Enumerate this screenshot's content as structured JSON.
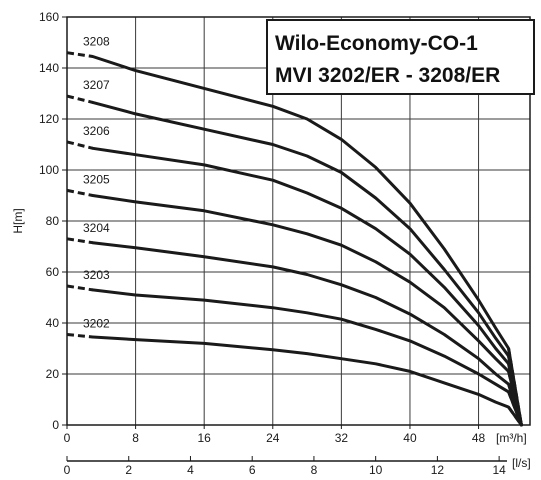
{
  "chart_data": {
    "type": "line",
    "title": [
      "Wilo-Economy-CO-1",
      "MVI 3202/ER - 3208/ER"
    ],
    "ylabel": "H[m]",
    "xlabel": "[m³/h]",
    "x2label": "[l/s]",
    "xlim": [
      0,
      54
    ],
    "ylim": [
      0,
      160
    ],
    "x2lim": [
      0,
      15
    ],
    "xticks": [
      0,
      8,
      16,
      24,
      32,
      40,
      48
    ],
    "yticks": [
      0,
      20,
      40,
      60,
      80,
      100,
      120,
      140,
      160
    ],
    "x2ticks": [
      0,
      2,
      4,
      6,
      8,
      10,
      12,
      14
    ],
    "grid": true,
    "series": [
      {
        "name": "3208",
        "x": [
          0,
          3,
          8,
          16,
          24,
          28,
          32,
          36,
          40,
          44,
          48,
          50,
          51.5,
          53
        ],
        "y": [
          146,
          144.5,
          139,
          132,
          125,
          120,
          112,
          101,
          87,
          69,
          49,
          38,
          30,
          0
        ]
      },
      {
        "name": "3207",
        "x": [
          0,
          3,
          8,
          16,
          24,
          28,
          32,
          36,
          40,
          44,
          48,
          50,
          51.5,
          53
        ],
        "y": [
          129,
          126.5,
          122,
          116,
          110,
          105.5,
          99,
          89,
          77,
          61,
          44,
          34,
          27,
          0
        ]
      },
      {
        "name": "3206",
        "x": [
          0,
          3,
          8,
          16,
          24,
          28,
          32,
          36,
          40,
          44,
          48,
          50,
          51.5,
          53
        ],
        "y": [
          111,
          108.5,
          106,
          102,
          96,
          91,
          85,
          77,
          67,
          54,
          39,
          30,
          24,
          0
        ]
      },
      {
        "name": "3205",
        "x": [
          0,
          3,
          8,
          16,
          24,
          28,
          32,
          36,
          40,
          44,
          48,
          50,
          51.5,
          53
        ],
        "y": [
          92,
          90,
          87.5,
          84,
          78.5,
          75,
          70.5,
          64,
          56,
          46,
          33,
          26,
          21,
          0
        ]
      },
      {
        "name": "3204",
        "x": [
          0,
          3,
          8,
          16,
          24,
          28,
          32,
          36,
          40,
          44,
          48,
          50,
          51.5,
          53
        ],
        "y": [
          73,
          71.5,
          69.5,
          66,
          62,
          59,
          55,
          50,
          43.5,
          35.5,
          26,
          20,
          16,
          0
        ]
      },
      {
        "name": "3203",
        "x": [
          0,
          3,
          8,
          16,
          24,
          28,
          32,
          36,
          40,
          44,
          48,
          50,
          51.5,
          53
        ],
        "y": [
          54.5,
          53,
          51,
          49,
          46,
          44,
          41.5,
          37.5,
          33,
          27,
          20,
          16,
          13,
          0
        ]
      },
      {
        "name": "3202",
        "x": [
          0,
          3,
          8,
          16,
          24,
          28,
          32,
          36,
          40,
          44,
          48,
          50,
          51.5,
          53
        ],
        "y": [
          35.5,
          34.5,
          33.5,
          32,
          29.5,
          28,
          26,
          24,
          21,
          16.5,
          12,
          9,
          7,
          0
        ]
      }
    ],
    "colors": {
      "line": "#1a1a1a",
      "grid": "#3a3a3a",
      "background": "#ffffff"
    }
  }
}
